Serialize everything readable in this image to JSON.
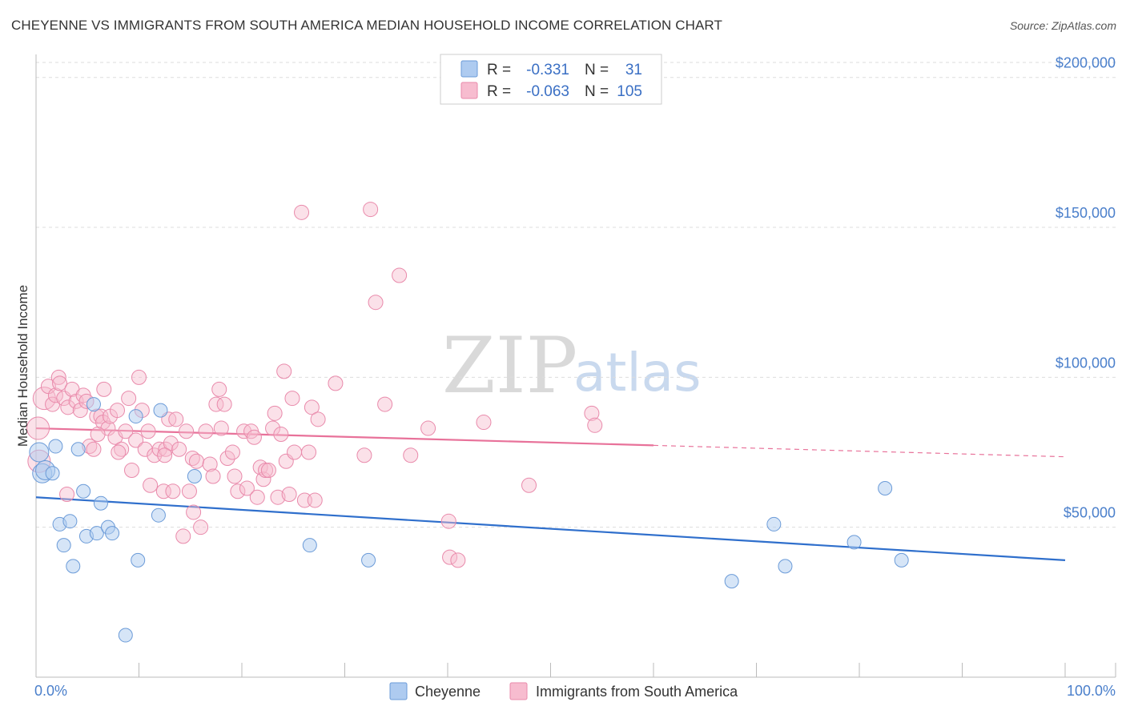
{
  "title": "CHEYENNE VS IMMIGRANTS FROM SOUTH AMERICA MEDIAN HOUSEHOLD INCOME CORRELATION CHART",
  "source": "Source: ZipAtlas.com",
  "watermark": {
    "zip": "ZIP",
    "atlas": "atlas"
  },
  "legend": {
    "rows": [
      {
        "r_label": "R =",
        "r_value": "-0.331",
        "n_label": "N =",
        "n_value": "31"
      },
      {
        "r_label": "R =",
        "r_value": "-0.063",
        "n_label": "N =",
        "n_value": "105"
      }
    ]
  },
  "colors": {
    "blue_fill": "#aecbf0",
    "blue_stroke": "#6b9bd8",
    "blue_line": "#2f6fcc",
    "pink_fill": "#f7bccf",
    "pink_stroke": "#e98aab",
    "pink_line": "#e8729a",
    "grid": "#dddddd",
    "tick_text": "#4a7fcb"
  },
  "chart_data": {
    "type": "scatter",
    "title": "CHEYENNE VS IMMIGRANTS FROM SOUTH AMERICA MEDIAN HOUSEHOLD INCOME CORRELATION CHART",
    "xlabel": "",
    "ylabel": "Median Household Income",
    "xlim": [
      0,
      100
    ],
    "ylim": [
      0,
      205000
    ],
    "x_tick_labels": [
      "0.0%",
      "100.0%"
    ],
    "y_ticks": [
      50000,
      100000,
      150000,
      200000
    ],
    "y_tick_labels": [
      "$50,000",
      "$100,000",
      "$150,000",
      "$200,000"
    ],
    "legend_position": "top-center",
    "series": [
      {
        "name": "Cheyenne",
        "r": -0.331,
        "n": 31,
        "trend": {
          "x": [
            0,
            100
          ],
          "y": [
            60000,
            39000
          ],
          "dashed_from": null
        },
        "points": [
          [
            0.3,
            75000
          ],
          [
            0.6,
            68000
          ],
          [
            0.9,
            69000
          ],
          [
            1.6,
            68000
          ],
          [
            1.9,
            77000
          ],
          [
            2.3,
            51000
          ],
          [
            2.7,
            44000
          ],
          [
            3.3,
            52000
          ],
          [
            3.6,
            37000
          ],
          [
            4.1,
            76000
          ],
          [
            4.6,
            62000
          ],
          [
            4.9,
            47000
          ],
          [
            5.6,
            91000
          ],
          [
            5.9,
            48000
          ],
          [
            6.3,
            58000
          ],
          [
            7.0,
            50000
          ],
          [
            7.4,
            48000
          ],
          [
            8.7,
            14000
          ],
          [
            9.7,
            87000
          ],
          [
            9.9,
            39000
          ],
          [
            11.9,
            54000
          ],
          [
            12.1,
            89000
          ],
          [
            15.4,
            67000
          ],
          [
            26.6,
            44000
          ],
          [
            32.3,
            39000
          ],
          [
            67.6,
            32000
          ],
          [
            71.7,
            51000
          ],
          [
            72.8,
            37000
          ],
          [
            79.5,
            45000
          ],
          [
            82.5,
            63000
          ],
          [
            84.1,
            39000
          ]
        ]
      },
      {
        "name": "Immigrants from South America",
        "r": -0.063,
        "n": 105,
        "trend": {
          "x": [
            0,
            100
          ],
          "y": [
            83000,
            73500
          ],
          "dashed_from": 60
        },
        "points": [
          [
            0.2,
            83000
          ],
          [
            0.3,
            72000
          ],
          [
            0.8,
            93000
          ],
          [
            1.2,
            97000
          ],
          [
            1.6,
            91000
          ],
          [
            1.9,
            94000
          ],
          [
            2.2,
            100000
          ],
          [
            2.3,
            98000
          ],
          [
            2.7,
            93000
          ],
          [
            3.1,
            90000
          ],
          [
            3.5,
            96000
          ],
          [
            3.9,
            92000
          ],
          [
            4.3,
            89000
          ],
          [
            4.6,
            94000
          ],
          [
            4.9,
            92000
          ],
          [
            5.2,
            77000
          ],
          [
            5.6,
            76000
          ],
          [
            5.9,
            87000
          ],
          [
            6.3,
            87000
          ],
          [
            6.5,
            85000
          ],
          [
            6.6,
            96000
          ],
          [
            7.0,
            83000
          ],
          [
            7.2,
            87000
          ],
          [
            7.7,
            80000
          ],
          [
            7.9,
            89000
          ],
          [
            8.3,
            76000
          ],
          [
            8.7,
            82000
          ],
          [
            9.0,
            93000
          ],
          [
            9.3,
            69000
          ],
          [
            9.7,
            79000
          ],
          [
            10.0,
            100000
          ],
          [
            10.3,
            89000
          ],
          [
            10.6,
            76000
          ],
          [
            10.9,
            82000
          ],
          [
            11.1,
            64000
          ],
          [
            11.5,
            74000
          ],
          [
            12.0,
            76000
          ],
          [
            12.4,
            62000
          ],
          [
            12.6,
            76000
          ],
          [
            12.9,
            86000
          ],
          [
            13.1,
            78000
          ],
          [
            13.3,
            62000
          ],
          [
            13.6,
            86000
          ],
          [
            13.9,
            76000
          ],
          [
            14.3,
            47000
          ],
          [
            14.6,
            82000
          ],
          [
            14.9,
            62000
          ],
          [
            15.2,
            73000
          ],
          [
            15.3,
            55000
          ],
          [
            15.6,
            72000
          ],
          [
            16.0,
            50000
          ],
          [
            16.5,
            82000
          ],
          [
            16.9,
            71000
          ],
          [
            17.2,
            67000
          ],
          [
            17.5,
            91000
          ],
          [
            17.8,
            96000
          ],
          [
            18.0,
            83000
          ],
          [
            18.3,
            91000
          ],
          [
            18.6,
            73000
          ],
          [
            19.1,
            75000
          ],
          [
            19.3,
            67000
          ],
          [
            19.6,
            62000
          ],
          [
            20.2,
            82000
          ],
          [
            20.5,
            63000
          ],
          [
            20.9,
            82000
          ],
          [
            21.2,
            80000
          ],
          [
            21.5,
            60000
          ],
          [
            21.8,
            70000
          ],
          [
            22.1,
            66000
          ],
          [
            22.3,
            69000
          ],
          [
            22.6,
            69000
          ],
          [
            23.0,
            83000
          ],
          [
            23.2,
            88000
          ],
          [
            23.5,
            60000
          ],
          [
            23.8,
            81000
          ],
          [
            24.1,
            102000
          ],
          [
            24.3,
            72000
          ],
          [
            24.6,
            61000
          ],
          [
            24.9,
            93000
          ],
          [
            25.1,
            75000
          ],
          [
            25.8,
            155000
          ],
          [
            26.1,
            59000
          ],
          [
            26.5,
            75000
          ],
          [
            26.8,
            90000
          ],
          [
            27.1,
            59000
          ],
          [
            27.4,
            86000
          ],
          [
            29.1,
            98000
          ],
          [
            31.9,
            74000
          ],
          [
            32.5,
            156000
          ],
          [
            33.0,
            125000
          ],
          [
            33.9,
            91000
          ],
          [
            35.3,
            134000
          ],
          [
            36.4,
            74000
          ],
          [
            38.1,
            83000
          ],
          [
            40.1,
            52000
          ],
          [
            40.2,
            40000
          ],
          [
            41.0,
            39000
          ],
          [
            43.5,
            85000
          ],
          [
            47.9,
            64000
          ],
          [
            54.0,
            88000
          ],
          [
            54.3,
            84000
          ],
          [
            3.0,
            61000
          ],
          [
            6.0,
            81000
          ],
          [
            8.0,
            75000
          ],
          [
            12.5,
            74000
          ]
        ]
      }
    ]
  },
  "bottom_legend": {
    "items": [
      "Cheyenne",
      "Immigrants from South America"
    ]
  }
}
